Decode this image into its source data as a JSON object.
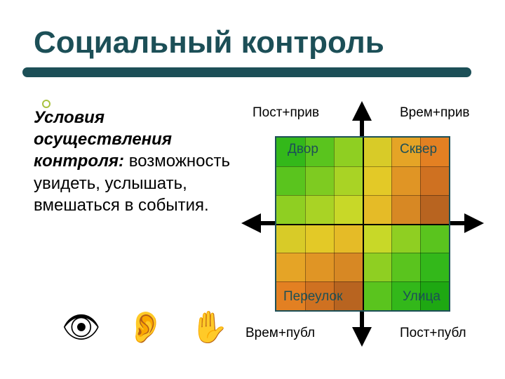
{
  "title": {
    "text": "Социальный контроль",
    "color": "#1c4f57",
    "fontsize": 44
  },
  "underline_color": "#1c4f57",
  "bullet_color": "#a9c23f",
  "left": {
    "subtitle": "Условия осуществления контроля:",
    "body": "возможность увидеть, услышать, вмешаться в события.",
    "color": "#000000",
    "fontsize": 24
  },
  "icons": {
    "eye": "👁",
    "ear": "👂",
    "hand": "✋"
  },
  "diagram": {
    "type": "quadrant-heatmap",
    "box": {
      "size": 250,
      "border_color": "#1c4f57",
      "grid_color": "#2a2a2a"
    },
    "axis_labels": {
      "top_left": "Пост+прив",
      "top_right": "Врем+прив",
      "bottom_left": "Врем+публ",
      "bottom_right": "Пост+публ"
    },
    "quadrants": {
      "tl": {
        "label": "Двор",
        "label_color": "#1c4f57"
      },
      "tr": {
        "label": "Сквер",
        "label_color": "#1c4f57"
      },
      "bl": {
        "label": "Переулок",
        "label_color": "#1c4f57"
      },
      "br": {
        "label": "Улица",
        "label_color": "#1c4f57"
      }
    },
    "cells": {
      "palette_note": "per-cell colors, 6x6 grid, row-major from top-left",
      "colors": [
        [
          "#33b81a",
          "#5ac41e",
          "#8fcf22",
          "#d8cb28",
          "#e5a426",
          "#e38022"
        ],
        [
          "#5ac41e",
          "#7ecb21",
          "#a9d325",
          "#e3c927",
          "#e09525",
          "#cf7121"
        ],
        [
          "#8fcf22",
          "#a9d325",
          "#c8d828",
          "#e5bb27",
          "#d78824",
          "#b86420"
        ],
        [
          "#d8cb28",
          "#e3c927",
          "#e5bb27",
          "#c8d828",
          "#8fcf22",
          "#5ac41e"
        ],
        [
          "#e5a426",
          "#e09525",
          "#d78824",
          "#8fcf22",
          "#5ac41e",
          "#33b81a"
        ],
        [
          "#e38022",
          "#cf7121",
          "#b86420",
          "#5ac41e",
          "#33b81a",
          "#1ea812"
        ]
      ]
    },
    "arrow_color": "#000000"
  }
}
